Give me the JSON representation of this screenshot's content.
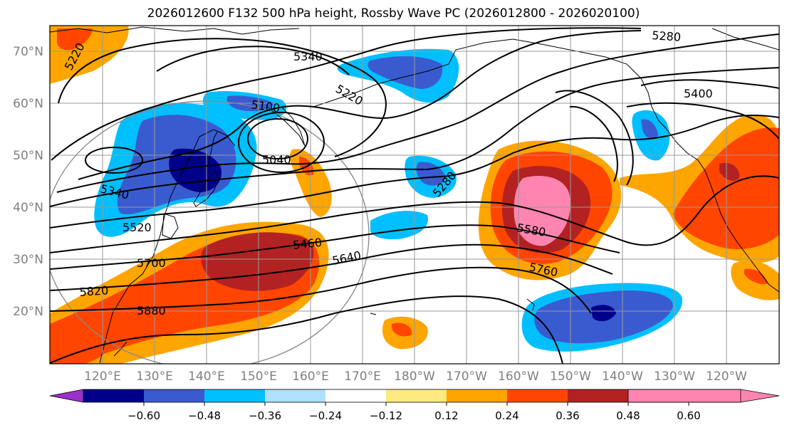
{
  "title": "2026012600 F132 500 hPa height, Rossby Wave PC (2026012800 - 2026020100)",
  "lat_labels": [
    "70°N",
    "60°N",
    "50°N",
    "40°N",
    "30°N",
    "20°N"
  ],
  "lon_labels": [
    "120°E",
    "130°E",
    "140°E",
    "150°E",
    "160°E",
    "170°E",
    "180°W",
    "170°W",
    "160°W",
    "150°W",
    "140°W",
    "130°W",
    "120°W"
  ],
  "contour_labels": [
    "5220",
    "5340",
    "5280",
    "5100",
    "5220",
    "5400",
    "5040",
    "5340",
    "5280",
    "5520",
    "5460",
    "5580",
    "5640",
    "5700",
    "5760",
    "5820",
    "5880"
  ],
  "colorbar": {
    "colors": [
      "#9932cc",
      "#00008b",
      "#3a5bd0",
      "#00bfff",
      "#b0e0ff",
      "#ffffff",
      "#ffea80",
      "#ffa500",
      "#ff4500",
      "#b22222",
      "#ff85b0"
    ],
    "ticks": [
      "−0.60",
      "−0.48",
      "−0.36",
      "−0.24",
      "−0.12",
      "0.12",
      "0.24",
      "0.36",
      "0.48",
      "0.60"
    ]
  }
}
